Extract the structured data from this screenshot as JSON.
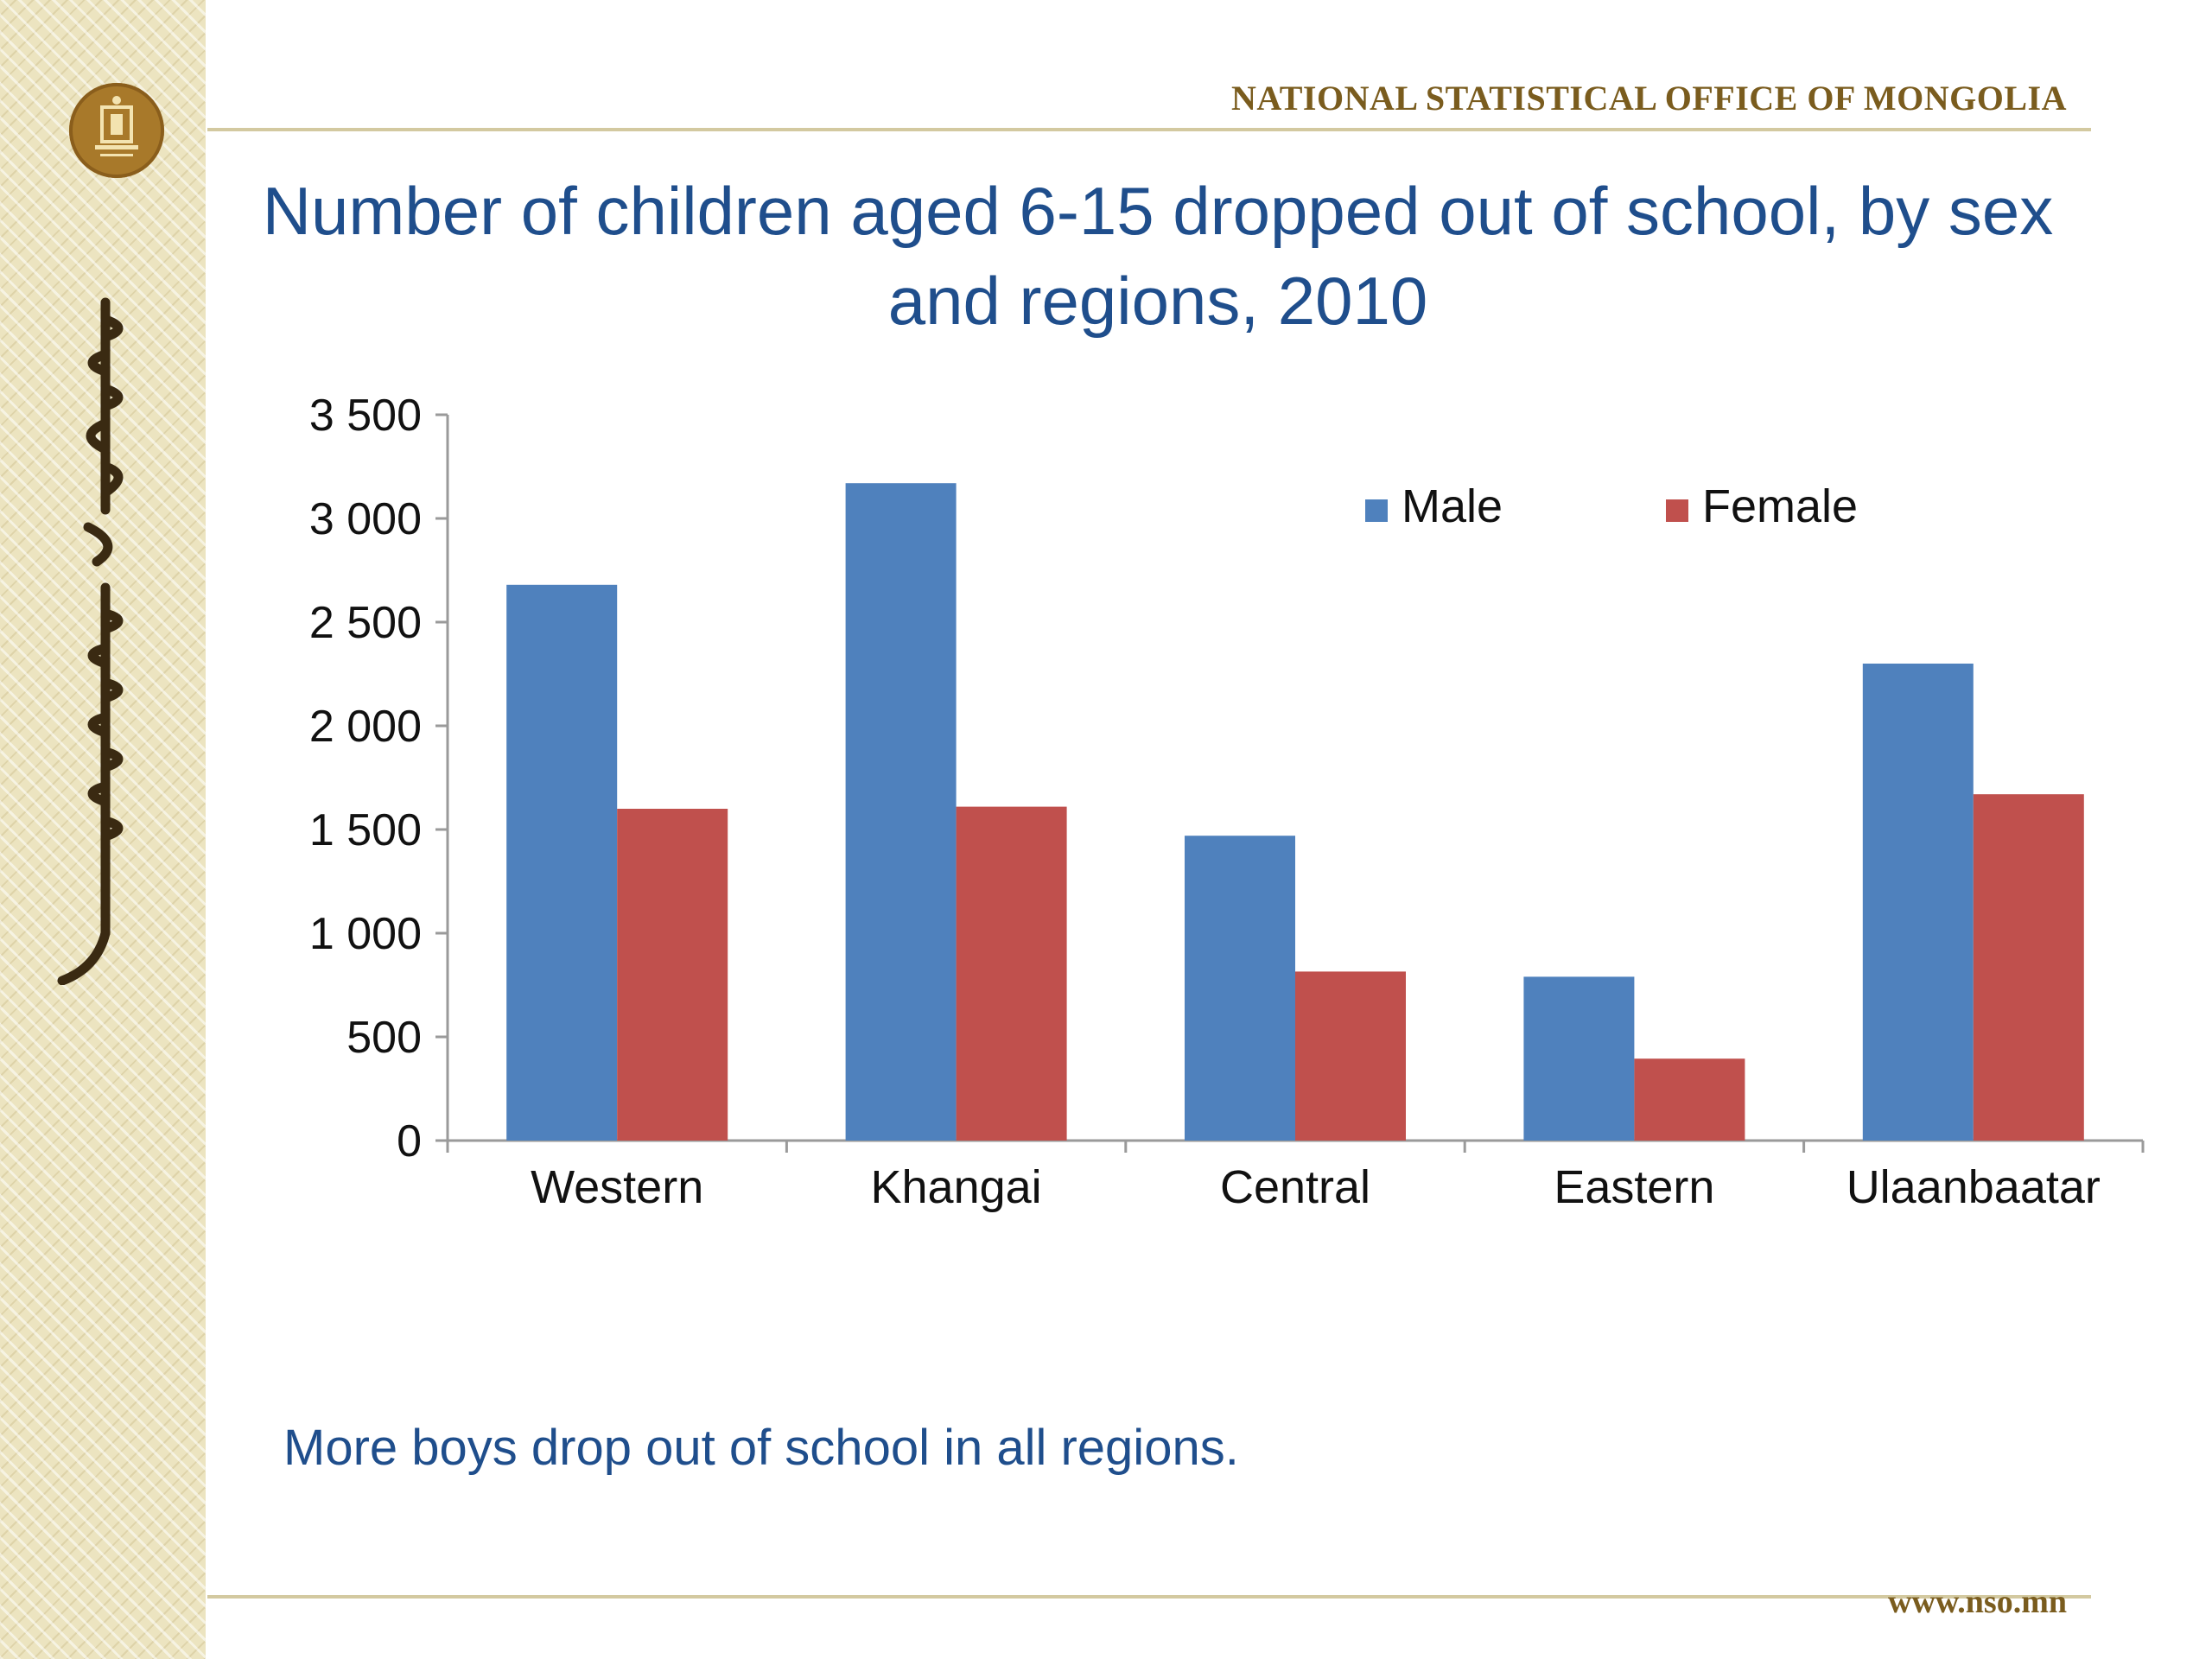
{
  "header": {
    "organization": "NATIONAL STATISTICAL OFFICE OF MONGOLIA"
  },
  "slide": {
    "title": "Number of children aged 6-15 dropped out of school, by sex and regions, 2010",
    "note": "More boys drop out of school in all regions.",
    "footer_url": "www.nso.mn"
  },
  "icons": {
    "logo": "nso-emblem-icon",
    "sidebar_script": "mongolian-script-icon"
  },
  "chart_data": {
    "type": "bar",
    "categories": [
      "Western",
      "Khangai",
      "Central",
      "Eastern",
      "Ulaanbaatar"
    ],
    "series": [
      {
        "name": "Male",
        "color": "#4f81bd",
        "values": [
          2680,
          3170,
          1470,
          790,
          2300
        ]
      },
      {
        "name": "Female",
        "color": "#c0504d",
        "values": [
          1600,
          1610,
          815,
          395,
          1670
        ]
      }
    ],
    "ylim": [
      0,
      3500
    ],
    "yticks": [
      0,
      500,
      1000,
      1500,
      2000,
      2500,
      3000,
      3500
    ],
    "ytick_labels": [
      "0",
      "500",
      "1 000",
      "1 500",
      "2 000",
      "2 500",
      "3 000",
      "3 500"
    ],
    "legend": "top-right",
    "grid": false
  }
}
